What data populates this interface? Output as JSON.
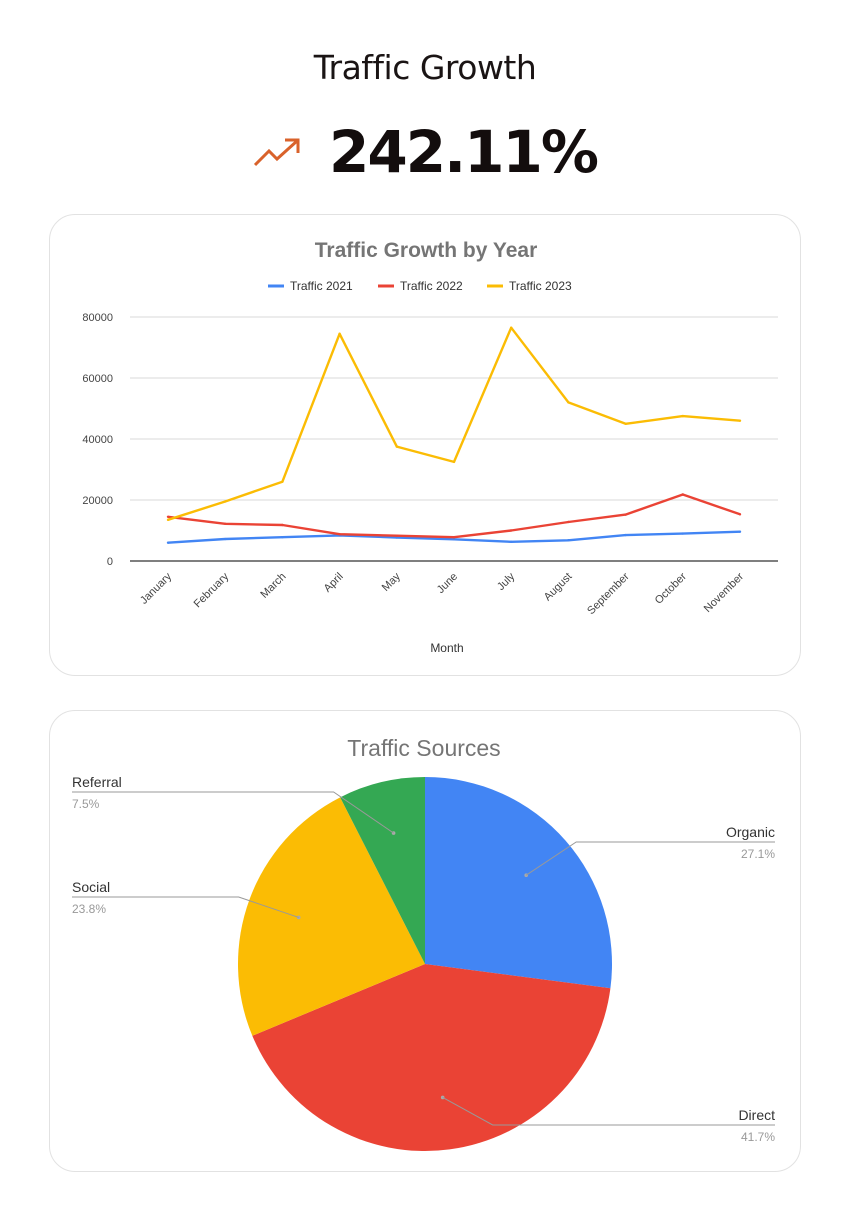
{
  "header": {
    "title": "Traffic Growth",
    "metric_value": "242.11%",
    "metric_icon": "trending-up-icon",
    "metric_icon_color": "#d9622b"
  },
  "chart_data": [
    {
      "type": "line",
      "title": "Traffic Growth by Year",
      "xlabel": "Month",
      "ylabel": "",
      "categories": [
        "January",
        "February",
        "March",
        "April",
        "May",
        "June",
        "July",
        "August",
        "September",
        "October",
        "November"
      ],
      "ylim": [
        0,
        80000
      ],
      "yticks": [
        "0",
        "20000",
        "40000",
        "60000",
        "80000"
      ],
      "legend_position": "top",
      "grid": true,
      "series": [
        {
          "name": "Traffic 2021",
          "color": "#4285f4",
          "values": [
            6000,
            7200,
            7800,
            8400,
            7700,
            7100,
            6300,
            6800,
            8500,
            9000,
            9600
          ]
        },
        {
          "name": "Traffic 2022",
          "color": "#ea4335",
          "values": [
            14500,
            12200,
            11800,
            8800,
            8300,
            7800,
            10000,
            12800,
            15200,
            21800,
            15300
          ]
        },
        {
          "name": "Traffic 2023",
          "color": "#fbbc04",
          "values": [
            13500,
            19500,
            26000,
            74500,
            37500,
            32500,
            76500,
            52000,
            45000,
            47500,
            46000
          ]
        }
      ]
    },
    {
      "type": "pie",
      "title": "Traffic Sources",
      "slices": [
        {
          "name": "Organic",
          "label": "27.1%",
          "value": 27.1,
          "color": "#4285f4"
        },
        {
          "name": "Direct",
          "label": "41.7%",
          "value": 41.7,
          "color": "#ea4335"
        },
        {
          "name": "Social",
          "label": "23.8%",
          "value": 23.8,
          "color": "#fbbc04"
        },
        {
          "name": "Referral",
          "label": "7.5%",
          "value": 7.5,
          "color": "#34a853"
        }
      ]
    }
  ]
}
